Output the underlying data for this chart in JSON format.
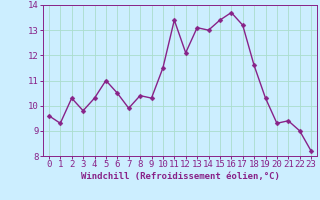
{
  "x": [
    0,
    1,
    2,
    3,
    4,
    5,
    6,
    7,
    8,
    9,
    10,
    11,
    12,
    13,
    14,
    15,
    16,
    17,
    18,
    19,
    20,
    21,
    22,
    23
  ],
  "y": [
    9.6,
    9.3,
    10.3,
    9.8,
    10.3,
    11.0,
    10.5,
    9.9,
    10.4,
    10.3,
    11.5,
    13.4,
    12.1,
    13.1,
    13.0,
    13.4,
    13.7,
    13.2,
    11.6,
    10.3,
    9.3,
    9.4,
    9.0,
    8.2
  ],
  "line_color": "#882288",
  "marker_color": "#882288",
  "bg_color": "#cceeff",
  "grid_color": "#aaddcc",
  "xlabel": "Windchill (Refroidissement éolien,°C)",
  "xlim": [
    -0.5,
    23.5
  ],
  "ylim": [
    8,
    14
  ],
  "yticks": [
    8,
    9,
    10,
    11,
    12,
    13,
    14
  ],
  "xticks": [
    0,
    1,
    2,
    3,
    4,
    5,
    6,
    7,
    8,
    9,
    10,
    11,
    12,
    13,
    14,
    15,
    16,
    17,
    18,
    19,
    20,
    21,
    22,
    23
  ],
  "xlabel_fontsize": 6.5,
  "tick_fontsize": 6.5,
  "line_width": 1.0,
  "marker_size": 2.5
}
